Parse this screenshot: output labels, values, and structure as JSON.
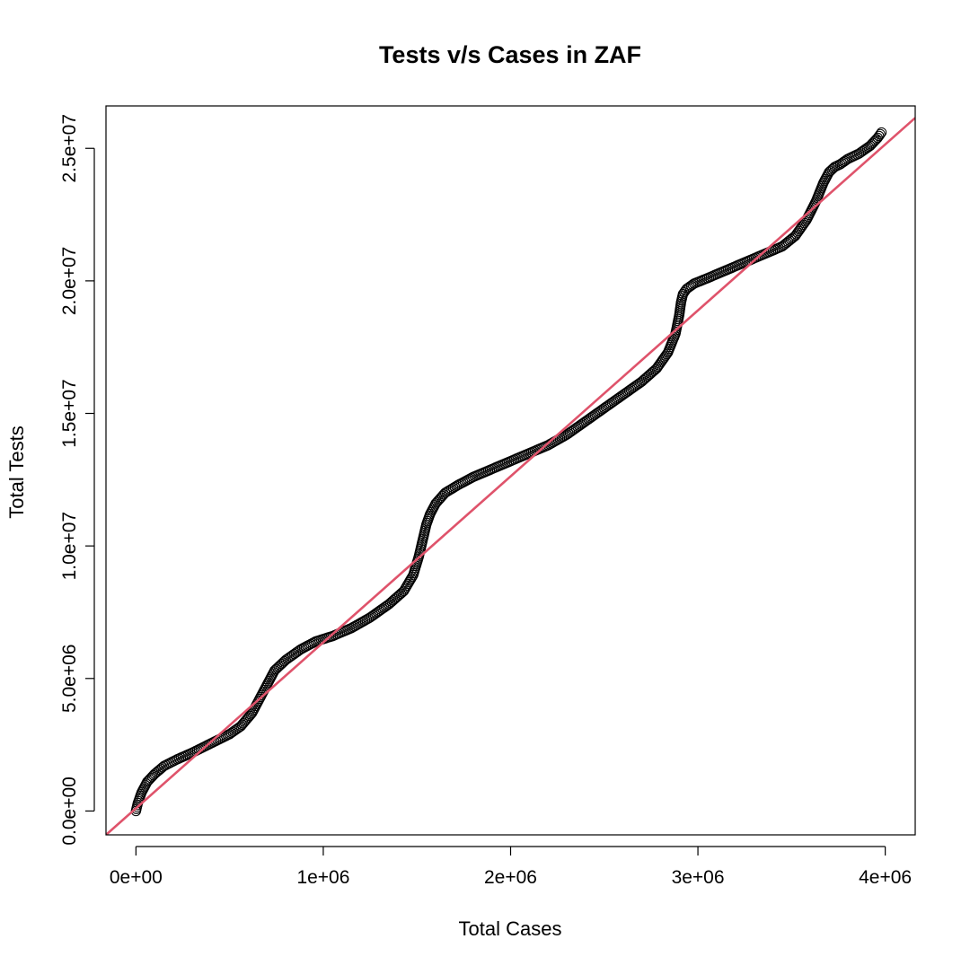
{
  "chart_data": {
    "type": "scatter",
    "title": "Tests v/s Cases in ZAF",
    "xlabel": "Total Cases",
    "ylabel": "Total Tests",
    "xlim": [
      -160000,
      4160000
    ],
    "ylim": [
      -900000,
      26600000
    ],
    "x_ticks": [
      {
        "value": 0,
        "label": "0e+00"
      },
      {
        "value": 1000000,
        "label": "1e+06"
      },
      {
        "value": 2000000,
        "label": "2e+06"
      },
      {
        "value": 3000000,
        "label": "3e+06"
      },
      {
        "value": 4000000,
        "label": "4e+06"
      }
    ],
    "y_ticks": [
      {
        "value": 0,
        "label": "0.0e+00"
      },
      {
        "value": 5000000,
        "label": "5.0e+06"
      },
      {
        "value": 10000000,
        "label": "1.0e+07"
      },
      {
        "value": 15000000,
        "label": "1.5e+07"
      },
      {
        "value": 20000000,
        "label": "2.0e+07"
      },
      {
        "value": 25000000,
        "label": "2.5e+07"
      }
    ],
    "series": [
      {
        "style": "open-circles",
        "color": "#000000",
        "x": [
          0,
          10000,
          30000,
          60000,
          100000,
          150000,
          220000,
          300000,
          400000,
          500000,
          560000,
          620000,
          680000,
          740000,
          800000,
          880000,
          960000,
          1050000,
          1150000,
          1250000,
          1350000,
          1430000,
          1480000,
          1510000,
          1530000,
          1550000,
          1570000,
          1600000,
          1650000,
          1720000,
          1800000,
          1900000,
          2000000,
          2100000,
          2200000,
          2300000,
          2400000,
          2500000,
          2600000,
          2700000,
          2780000,
          2840000,
          2880000,
          2900000,
          2910000,
          2920000,
          2940000,
          2980000,
          3050000,
          3150000,
          3250000,
          3350000,
          3450000,
          3520000,
          3580000,
          3630000,
          3670000,
          3700000,
          3730000,
          3760000,
          3800000,
          3860000,
          3920000,
          3960000,
          3980000
        ],
        "y": [
          0,
          300000,
          700000,
          1100000,
          1400000,
          1700000,
          1950000,
          2200000,
          2550000,
          2900000,
          3200000,
          3700000,
          4500000,
          5300000,
          5700000,
          6100000,
          6400000,
          6600000,
          6900000,
          7300000,
          7800000,
          8300000,
          8900000,
          9600000,
          10200000,
          10800000,
          11200000,
          11600000,
          12000000,
          12300000,
          12600000,
          12900000,
          13200000,
          13500000,
          13800000,
          14200000,
          14700000,
          15200000,
          15700000,
          16200000,
          16700000,
          17300000,
          18000000,
          18700000,
          19200000,
          19500000,
          19700000,
          19900000,
          20100000,
          20400000,
          20700000,
          21000000,
          21300000,
          21700000,
          22300000,
          23000000,
          23700000,
          24100000,
          24300000,
          24400000,
          24600000,
          24800000,
          25100000,
          25400000,
          25600000
        ]
      }
    ],
    "fit_line": {
      "color": "#DF536B",
      "x": [
        -160000,
        4160000
      ],
      "y": [
        -900000,
        26150000
      ]
    },
    "grid": false,
    "legend": "none"
  }
}
